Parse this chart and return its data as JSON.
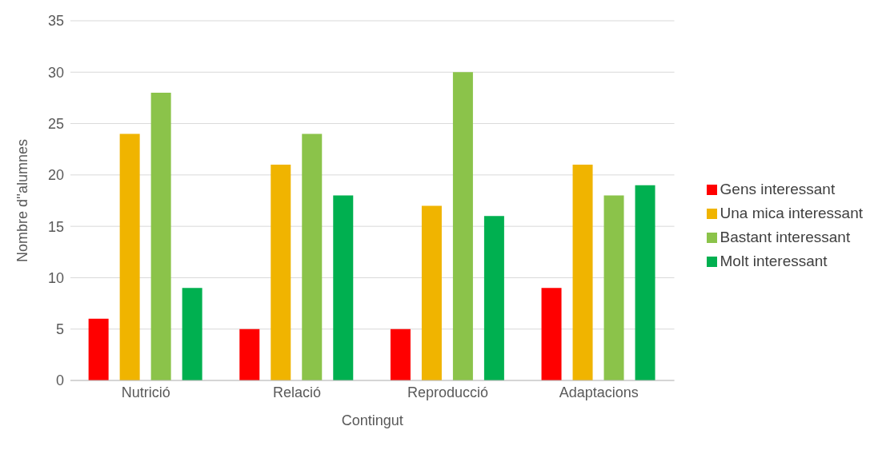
{
  "chart_data": {
    "type": "bar",
    "xlabel": "Contingut",
    "ylabel": "Nombre d''alumnes",
    "categories": [
      "Nutrició",
      "Relació",
      "Reproducció",
      "Adaptacions"
    ],
    "series": [
      {
        "name": "Gens interessant",
        "color": "#ff0000",
        "values": [
          6,
          5,
          5,
          9
        ]
      },
      {
        "name": "Una mica interessant",
        "color": "#f0b400",
        "values": [
          24,
          21,
          17,
          21
        ]
      },
      {
        "name": "Bastant interessant",
        "color": "#8bc34a",
        "values": [
          28,
          24,
          30,
          18
        ]
      },
      {
        "name": "Molt interessant",
        "color": "#00b050",
        "values": [
          9,
          18,
          16,
          19
        ]
      }
    ],
    "ylim": [
      0,
      35
    ],
    "yticks": [
      0,
      5,
      10,
      15,
      20,
      25,
      30,
      35
    ],
    "grid": "y",
    "legend": "right"
  }
}
